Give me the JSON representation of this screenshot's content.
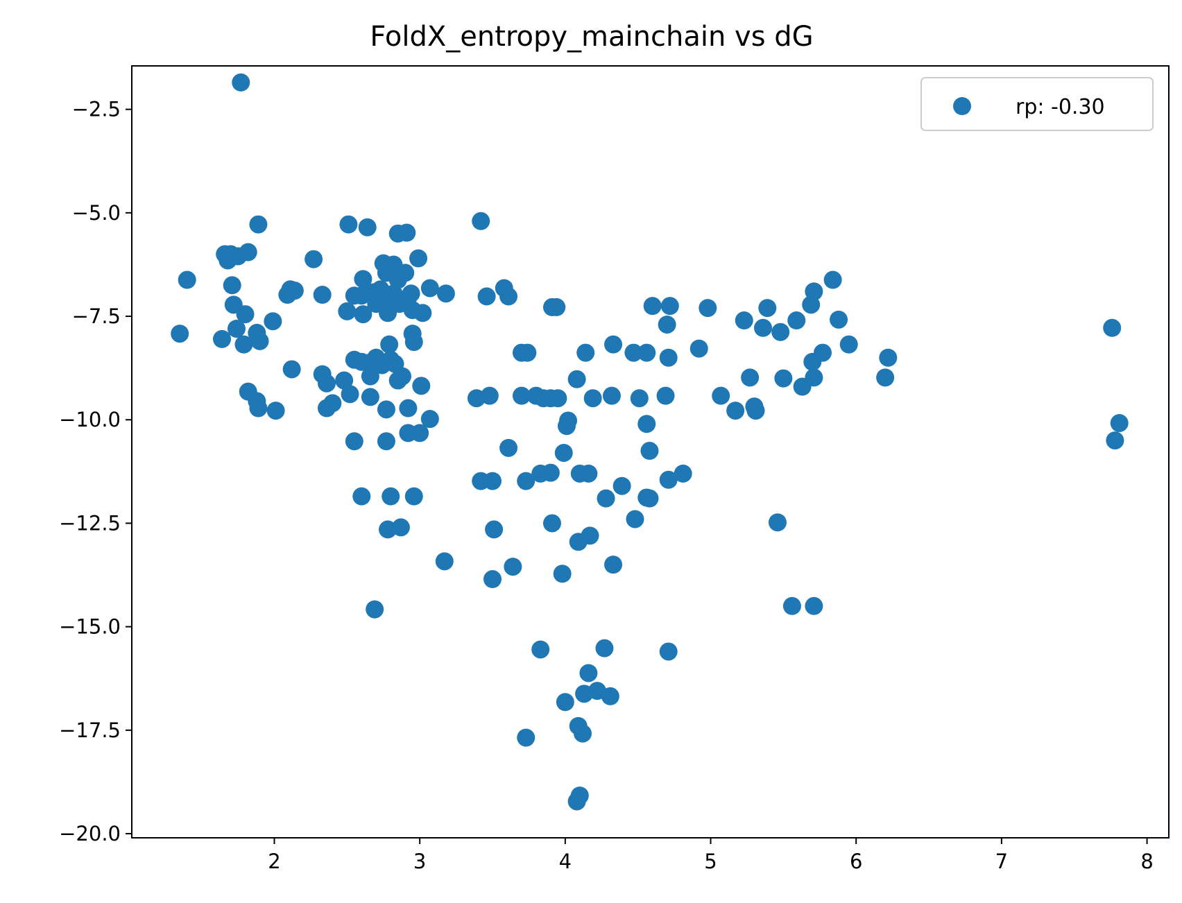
{
  "chart_data": {
    "type": "scatter",
    "title": "FoldX_entropy_mainchain vs dG",
    "xlabel": "",
    "ylabel": "",
    "xlim": [
      1.02,
      8.15
    ],
    "ylim": [
      -20.1,
      -1.45
    ],
    "xticks": [
      2,
      3,
      4,
      5,
      6,
      7,
      8
    ],
    "yticks": [
      -2.5,
      -5.0,
      -7.5,
      -10.0,
      -12.5,
      -15.0,
      -17.5,
      -20.0
    ],
    "ytick_labels": [
      "−2.5",
      "−5.0",
      "−7.5",
      "−10.0",
      "−12.5",
      "−15.0",
      "−17.5",
      "−20.0"
    ],
    "grid": false,
    "legend": {
      "position": "top-right",
      "entries": [
        {
          "label": "rp: -0.30"
        }
      ]
    },
    "series": [
      {
        "name": "rp: -0.30",
        "color": "#1f77b4",
        "points": [
          [
            1.77,
            -1.85
          ],
          [
            1.89,
            -5.28
          ],
          [
            1.66,
            -6.0
          ],
          [
            1.7,
            -6.0
          ],
          [
            1.75,
            -6.05
          ],
          [
            1.82,
            -5.95
          ],
          [
            1.68,
            -6.15
          ],
          [
            1.4,
            -6.62
          ],
          [
            1.71,
            -6.75
          ],
          [
            1.72,
            -7.22
          ],
          [
            1.8,
            -7.45
          ],
          [
            1.74,
            -7.8
          ],
          [
            1.35,
            -7.92
          ],
          [
            1.64,
            -8.05
          ],
          [
            1.79,
            -8.18
          ],
          [
            1.88,
            -7.9
          ],
          [
            1.9,
            -8.1
          ],
          [
            1.99,
            -7.62
          ],
          [
            1.82,
            -9.32
          ],
          [
            1.88,
            -9.55
          ],
          [
            1.89,
            -9.72
          ],
          [
            2.01,
            -9.78
          ],
          [
            2.09,
            -6.98
          ],
          [
            2.11,
            -6.85
          ],
          [
            2.14,
            -6.88
          ],
          [
            2.12,
            -8.78
          ],
          [
            2.27,
            -6.12
          ],
          [
            2.33,
            -6.98
          ],
          [
            2.33,
            -8.9
          ],
          [
            2.36,
            -9.12
          ],
          [
            2.36,
            -9.72
          ],
          [
            2.4,
            -9.6
          ],
          [
            2.48,
            -9.05
          ],
          [
            2.51,
            -5.28
          ],
          [
            2.64,
            -5.35
          ],
          [
            2.5,
            -7.38
          ],
          [
            2.55,
            -7.0
          ],
          [
            2.6,
            -7.0
          ],
          [
            2.61,
            -7.45
          ],
          [
            2.61,
            -6.6
          ],
          [
            2.65,
            -6.95
          ],
          [
            2.68,
            -6.92
          ],
          [
            2.7,
            -7.2
          ],
          [
            2.73,
            -6.85
          ],
          [
            2.75,
            -6.22
          ],
          [
            2.77,
            -6.45
          ],
          [
            2.79,
            -7.1
          ],
          [
            2.78,
            -7.42
          ],
          [
            2.82,
            -6.25
          ],
          [
            2.82,
            -6.95
          ],
          [
            2.85,
            -6.62
          ],
          [
            2.86,
            -7.2
          ],
          [
            2.9,
            -6.45
          ],
          [
            2.92,
            -7.05
          ],
          [
            2.95,
            -7.35
          ],
          [
            2.94,
            -6.95
          ],
          [
            2.85,
            -5.5
          ],
          [
            2.91,
            -5.48
          ],
          [
            2.99,
            -6.1
          ],
          [
            2.55,
            -8.55
          ],
          [
            2.6,
            -8.6
          ],
          [
            2.67,
            -8.6
          ],
          [
            2.7,
            -8.5
          ],
          [
            2.66,
            -8.95
          ],
          [
            2.74,
            -8.68
          ],
          [
            2.79,
            -8.18
          ],
          [
            2.8,
            -8.55
          ],
          [
            2.83,
            -8.65
          ],
          [
            2.85,
            -9.05
          ],
          [
            2.88,
            -8.95
          ],
          [
            2.52,
            -9.38
          ],
          [
            2.66,
            -9.45
          ],
          [
            2.77,
            -9.75
          ],
          [
            2.92,
            -9.72
          ],
          [
            2.95,
            -7.92
          ],
          [
            2.96,
            -8.12
          ],
          [
            3.02,
            -7.42
          ],
          [
            3.07,
            -6.82
          ],
          [
            3.18,
            -6.95
          ],
          [
            3.01,
            -9.18
          ],
          [
            3.07,
            -9.98
          ],
          [
            2.55,
            -10.52
          ],
          [
            2.77,
            -10.52
          ],
          [
            2.92,
            -10.32
          ],
          [
            3.0,
            -10.32
          ],
          [
            2.6,
            -11.85
          ],
          [
            2.8,
            -11.85
          ],
          [
            2.96,
            -11.85
          ],
          [
            2.78,
            -12.65
          ],
          [
            2.87,
            -12.6
          ],
          [
            3.17,
            -13.42
          ],
          [
            2.69,
            -14.58
          ],
          [
            3.42,
            -5.2
          ],
          [
            3.46,
            -7.02
          ],
          [
            3.58,
            -6.82
          ],
          [
            3.61,
            -7.02
          ],
          [
            3.39,
            -9.48
          ],
          [
            3.48,
            -9.42
          ],
          [
            3.42,
            -11.48
          ],
          [
            3.5,
            -11.48
          ],
          [
            3.61,
            -10.68
          ],
          [
            3.51,
            -12.65
          ],
          [
            3.64,
            -13.55
          ],
          [
            3.5,
            -13.85
          ],
          [
            3.7,
            -8.38
          ],
          [
            3.74,
            -8.38
          ],
          [
            3.7,
            -9.42
          ],
          [
            3.8,
            -9.42
          ],
          [
            3.85,
            -9.48
          ],
          [
            3.9,
            -9.48
          ],
          [
            3.95,
            -9.48
          ],
          [
            3.91,
            -7.28
          ],
          [
            3.94,
            -7.28
          ],
          [
            3.73,
            -11.48
          ],
          [
            3.83,
            -11.3
          ],
          [
            3.9,
            -11.28
          ],
          [
            3.91,
            -12.5
          ],
          [
            3.99,
            -10.8
          ],
          [
            4.01,
            -10.15
          ],
          [
            4.02,
            -10.02
          ],
          [
            4.08,
            -9.02
          ],
          [
            4.1,
            -11.3
          ],
          [
            4.16,
            -11.3
          ],
          [
            4.14,
            -8.38
          ],
          [
            4.19,
            -9.48
          ],
          [
            4.09,
            -12.95
          ],
          [
            4.17,
            -12.8
          ],
          [
            3.98,
            -13.72
          ],
          [
            3.83,
            -15.55
          ],
          [
            3.73,
            -17.68
          ],
          [
            4.0,
            -16.82
          ],
          [
            4.16,
            -16.12
          ],
          [
            4.13,
            -16.62
          ],
          [
            4.22,
            -16.55
          ],
          [
            4.31,
            -16.68
          ],
          [
            4.27,
            -15.52
          ],
          [
            4.09,
            -17.4
          ],
          [
            4.12,
            -17.58
          ],
          [
            4.08,
            -19.22
          ],
          [
            4.1,
            -19.08
          ],
          [
            4.28,
            -11.9
          ],
          [
            4.33,
            -8.18
          ],
          [
            4.32,
            -9.42
          ],
          [
            4.39,
            -11.6
          ],
          [
            4.33,
            -13.5
          ],
          [
            4.48,
            -12.4
          ],
          [
            4.47,
            -8.38
          ],
          [
            4.51,
            -9.48
          ],
          [
            4.56,
            -8.38
          ],
          [
            4.56,
            -10.1
          ],
          [
            4.56,
            -11.88
          ],
          [
            4.58,
            -11.9
          ],
          [
            4.58,
            -10.75
          ],
          [
            4.6,
            -7.25
          ],
          [
            4.72,
            -7.25
          ],
          [
            4.7,
            -7.7
          ],
          [
            4.71,
            -8.5
          ],
          [
            4.69,
            -9.42
          ],
          [
            4.71,
            -11.45
          ],
          [
            4.81,
            -11.3
          ],
          [
            4.71,
            -15.6
          ],
          [
            4.92,
            -8.28
          ],
          [
            4.98,
            -7.3
          ],
          [
            5.07,
            -9.42
          ],
          [
            5.17,
            -9.78
          ],
          [
            5.23,
            -7.6
          ],
          [
            5.27,
            -8.98
          ],
          [
            5.3,
            -9.68
          ],
          [
            5.31,
            -9.78
          ],
          [
            5.36,
            -7.78
          ],
          [
            5.39,
            -7.3
          ],
          [
            5.48,
            -7.88
          ],
          [
            5.5,
            -9.0
          ],
          [
            5.59,
            -7.6
          ],
          [
            5.63,
            -9.2
          ],
          [
            5.46,
            -12.48
          ],
          [
            5.56,
            -14.5
          ],
          [
            5.71,
            -14.5
          ],
          [
            5.69,
            -7.22
          ],
          [
            5.71,
            -6.9
          ],
          [
            5.7,
            -8.6
          ],
          [
            5.71,
            -8.98
          ],
          [
            5.77,
            -8.38
          ],
          [
            5.84,
            -6.62
          ],
          [
            5.88,
            -7.58
          ],
          [
            5.95,
            -8.18
          ],
          [
            6.2,
            -8.98
          ],
          [
            6.22,
            -8.5
          ],
          [
            7.76,
            -7.78
          ],
          [
            7.81,
            -10.08
          ],
          [
            7.78,
            -10.5
          ]
        ]
      }
    ]
  }
}
